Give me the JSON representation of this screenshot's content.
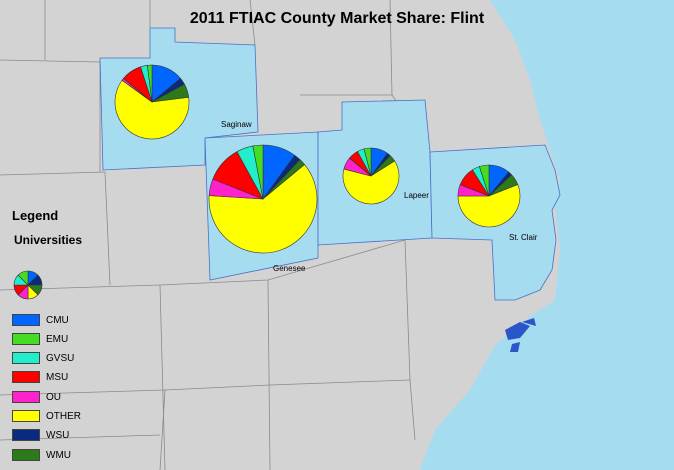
{
  "title": "2011 FTIAC County Market Share: Flint",
  "legend": {
    "title": "Legend",
    "subtitle": "Universities",
    "items": [
      {
        "label": "CMU",
        "color": "#0066ff"
      },
      {
        "label": "EMU",
        "color": "#44dd22"
      },
      {
        "label": "GVSU",
        "color": "#22eecc"
      },
      {
        "label": "MSU",
        "color": "#ff0000"
      },
      {
        "label": "OU",
        "color": "#ff22cc"
      },
      {
        "label": "OTHER",
        "color": "#ffff00"
      },
      {
        "label": "WSU",
        "color": "#0a2a80"
      },
      {
        "label": "WMU",
        "color": "#2d7a1a"
      }
    ]
  },
  "counties": [
    {
      "name": "Saginaw",
      "shares": {
        "CMU": 14,
        "EMU": 2,
        "GVSU": 3,
        "MSU": 9,
        "OU": 1,
        "OTHER": 62,
        "WSU": 3,
        "WMU": 6
      }
    },
    {
      "name": "Genesee",
      "shares": {
        "CMU": 10,
        "EMU": 3,
        "GVSU": 5,
        "MSU": 11,
        "OU": 5,
        "OTHER": 62,
        "WSU": 2,
        "WMU": 2
      }
    },
    {
      "name": "Lapeer",
      "shares": {
        "CMU": 10,
        "EMU": 4,
        "GVSU": 4,
        "MSU": 6,
        "OU": 7,
        "OTHER": 63,
        "WSU": 2,
        "WMU": 4
      }
    },
    {
      "name": "St. Clair",
      "shares": {
        "CMU": 11,
        "EMU": 5,
        "GVSU": 4,
        "MSU": 10,
        "OU": 6,
        "OTHER": 56,
        "WSU": 2,
        "WMU": 6
      }
    }
  ]
}
